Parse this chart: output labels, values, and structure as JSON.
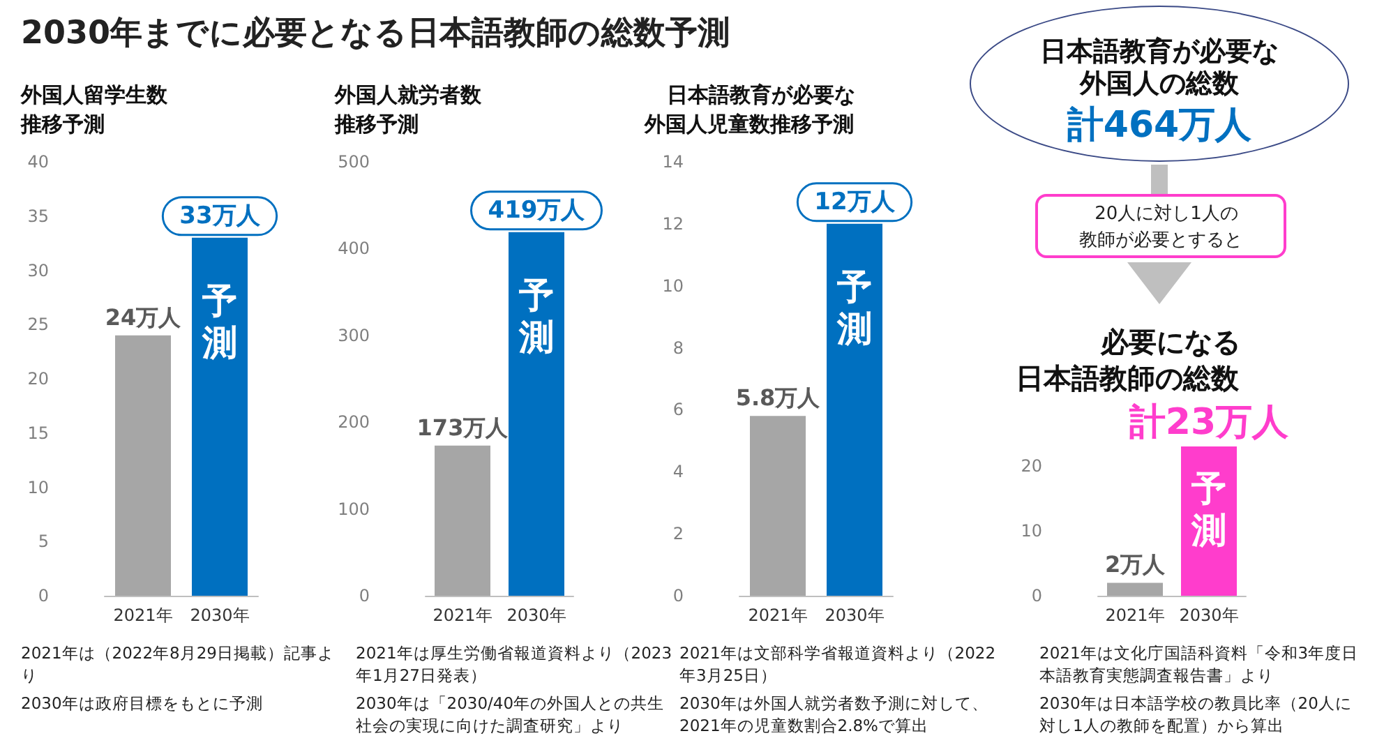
{
  "chart_data": [
    {
      "type": "other",
      "title": "2030年までに必要となる日本語教師の総数予測"
    },
    {
      "type": "bar",
      "title": "外国人留学生数推移予測",
      "categories": [
        "2021年",
        "2030年"
      ],
      "values": [
        24,
        33
      ],
      "colors": [
        "#a6a6a6",
        "#0070c0"
      ],
      "value_labels": [
        "24万人",
        "33万人"
      ],
      "ylim": [
        0,
        40
      ],
      "yticks": [
        0,
        5,
        10,
        15,
        20,
        25,
        30,
        35,
        40
      ],
      "annotations": [
        "予測",
        "2021年は（2022年8月29日掲載）記事より",
        "2030年は政府目標をもとに予測"
      ]
    },
    {
      "type": "bar",
      "title": "外国人就労者数推移予測",
      "categories": [
        "2021年",
        "2030年"
      ],
      "values": [
        173,
        419
      ],
      "colors": [
        "#a6a6a6",
        "#0070c0"
      ],
      "value_labels": [
        "173万人",
        "419万人"
      ],
      "ylim": [
        0,
        500
      ],
      "yticks": [
        0,
        100,
        200,
        300,
        400,
        500
      ],
      "annotations": [
        "予測",
        "2021年は厚生労働省報道資料より（2023年1月27日発表）",
        "2030年は「2030/40年の外国人との共生社会の実現に向けた調査研究」より"
      ]
    },
    {
      "type": "bar",
      "title": "日本語教育が必要な外国人児童数推移予測",
      "categories": [
        "2021年",
        "2030年"
      ],
      "values": [
        5.8,
        12
      ],
      "colors": [
        "#a6a6a6",
        "#0070c0"
      ],
      "value_labels": [
        "5.8万人",
        "12万人"
      ],
      "ylim": [
        0,
        14
      ],
      "yticks": [
        0,
        2,
        4,
        6,
        8,
        10,
        12,
        14
      ],
      "annotations": [
        "予測",
        "2021年は文部科学省報道資料より（2022年3月25日）",
        "2030年は外国人就労者数予測に対して、2021年の児童数割合2.8%で算出"
      ]
    },
    {
      "type": "other",
      "title": "日本語教育が必要な外国人の総数",
      "annotations": [
        "計464万人",
        "20人に対し1人の教師が必要とすると"
      ]
    },
    {
      "type": "bar",
      "title": "必要になる日本語教師の総数",
      "categories": [
        "2021年",
        "2030年"
      ],
      "values": [
        2,
        23
      ],
      "colors": [
        "#a6a6a6",
        "#ff3dcc"
      ],
      "value_labels": [
        "2万人",
        "計23万人"
      ],
      "ylim": [
        0,
        23
      ],
      "yticks": [
        0,
        10,
        20
      ],
      "annotations": [
        "予測",
        "2021年は文化庁国語科資料「令和3年度日本語教育実態調査報告書」より",
        "2030年は日本語学校の教員比率（20人に対し1人の教師を配置）から算出"
      ]
    }
  ]
}
